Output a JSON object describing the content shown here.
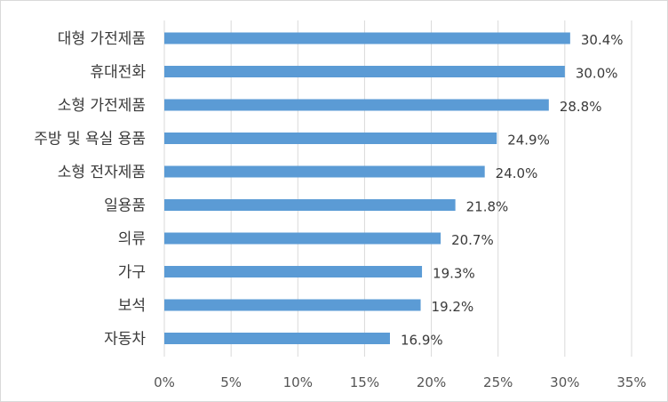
{
  "chart_data": {
    "type": "bar",
    "orientation": "horizontal",
    "categories": [
      "대형 가전제품",
      "휴대전화",
      "소형 가전제품",
      "주방 및 욕실 용품",
      "소형 전자제품",
      "일용품",
      "의류",
      "가구",
      "보석",
      "자동차"
    ],
    "values": [
      30.4,
      30.0,
      28.8,
      24.9,
      24.0,
      21.8,
      20.7,
      19.3,
      19.2,
      16.9
    ],
    "value_labels": [
      "30.4%",
      "30.0%",
      "28.8%",
      "24.9%",
      "24.0%",
      "21.8%",
      "20.7%",
      "19.3%",
      "19.2%",
      "16.9%"
    ],
    "x_ticks": [
      0,
      5,
      10,
      15,
      20,
      25,
      30,
      35
    ],
    "x_tick_labels": [
      "0%",
      "5%",
      "10%",
      "15%",
      "20%",
      "25%",
      "30%",
      "35%"
    ],
    "xlim": [
      0,
      35
    ],
    "grid": "vertical",
    "legend": "none",
    "title": "",
    "xlabel": "",
    "ylabel": "",
    "bar_color": "#5b9bd5",
    "grid_color": "#d9d9d9"
  }
}
